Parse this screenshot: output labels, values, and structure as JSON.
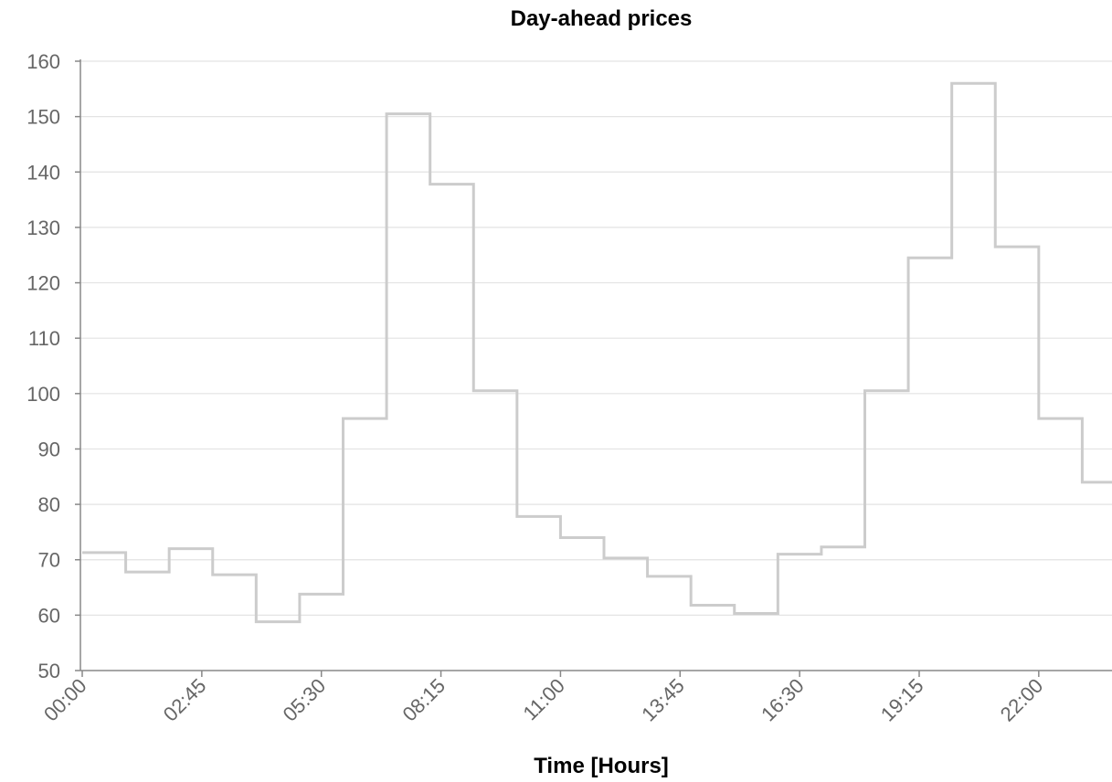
{
  "chart_data": {
    "type": "line",
    "step": "post",
    "title": "Day-ahead prices",
    "xlabel": "Time [Hours]",
    "ylabel": "",
    "ylim": [
      50,
      160
    ],
    "yticks": [
      50,
      60,
      70,
      80,
      90,
      100,
      110,
      120,
      130,
      140,
      150,
      160
    ],
    "xticks": [
      "00:00",
      "02:45",
      "05:30",
      "08:15",
      "11:00",
      "13:45",
      "16:30",
      "19:15",
      "22:00"
    ],
    "grid": true,
    "series": [
      {
        "color": "#cccccc",
        "x": [
          "00:00",
          "01:00",
          "02:00",
          "03:00",
          "04:00",
          "05:00",
          "06:00",
          "07:00",
          "08:00",
          "09:00",
          "10:00",
          "11:00",
          "12:00",
          "13:00",
          "14:00",
          "15:00",
          "16:00",
          "17:00",
          "18:00",
          "19:00",
          "20:00",
          "21:00",
          "22:00",
          "23:00"
        ],
        "values": [
          71.3,
          67.8,
          72.0,
          67.3,
          58.8,
          63.8,
          95.5,
          150.5,
          137.8,
          100.5,
          77.8,
          74.0,
          70.3,
          67.0,
          61.8,
          60.3,
          71.0,
          72.3,
          100.5,
          124.5,
          156.0,
          126.5,
          95.5,
          84.0
        ]
      }
    ]
  }
}
